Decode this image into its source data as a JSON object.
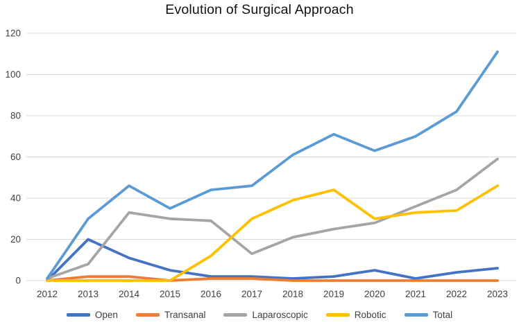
{
  "title": "Evolution of Surgical Approach",
  "chart_data": {
    "type": "line",
    "title": "Evolution of Surgical Approach",
    "x": [
      "2012",
      "2013",
      "2014",
      "2015",
      "2016",
      "2017",
      "2018",
      "2019",
      "2020",
      "2021",
      "2022",
      "2023"
    ],
    "series": [
      {
        "name": "Open",
        "color": "#4472C4",
        "values": [
          0,
          20,
          11,
          5,
          2,
          2,
          1,
          2,
          5,
          1,
          4,
          6
        ]
      },
      {
        "name": "Transanal",
        "color": "#ED7D31",
        "values": [
          0,
          2,
          2,
          0,
          1,
          1,
          0,
          0,
          0,
          0,
          0,
          0
        ]
      },
      {
        "name": "Laparoscopic",
        "color": "#A5A5A5",
        "values": [
          1,
          8,
          33,
          30,
          29,
          13,
          21,
          25,
          28,
          36,
          44,
          59
        ]
      },
      {
        "name": "Robotic",
        "color": "#FFC000",
        "values": [
          0,
          0,
          0,
          0,
          12,
          30,
          39,
          44,
          30,
          33,
          34,
          46
        ]
      },
      {
        "name": "Total",
        "color": "#5B9BD5",
        "values": [
          1,
          30,
          46,
          35,
          44,
          46,
          61,
          71,
          63,
          70,
          82,
          111
        ]
      }
    ],
    "xlabel": "",
    "ylabel": "",
    "ylim": [
      0,
      120
    ],
    "yticks": [
      0,
      20,
      40,
      60,
      80,
      100,
      120
    ],
    "grid": "horizontal",
    "gridline_color": "#D9D9D9",
    "legend_position": "bottom"
  }
}
